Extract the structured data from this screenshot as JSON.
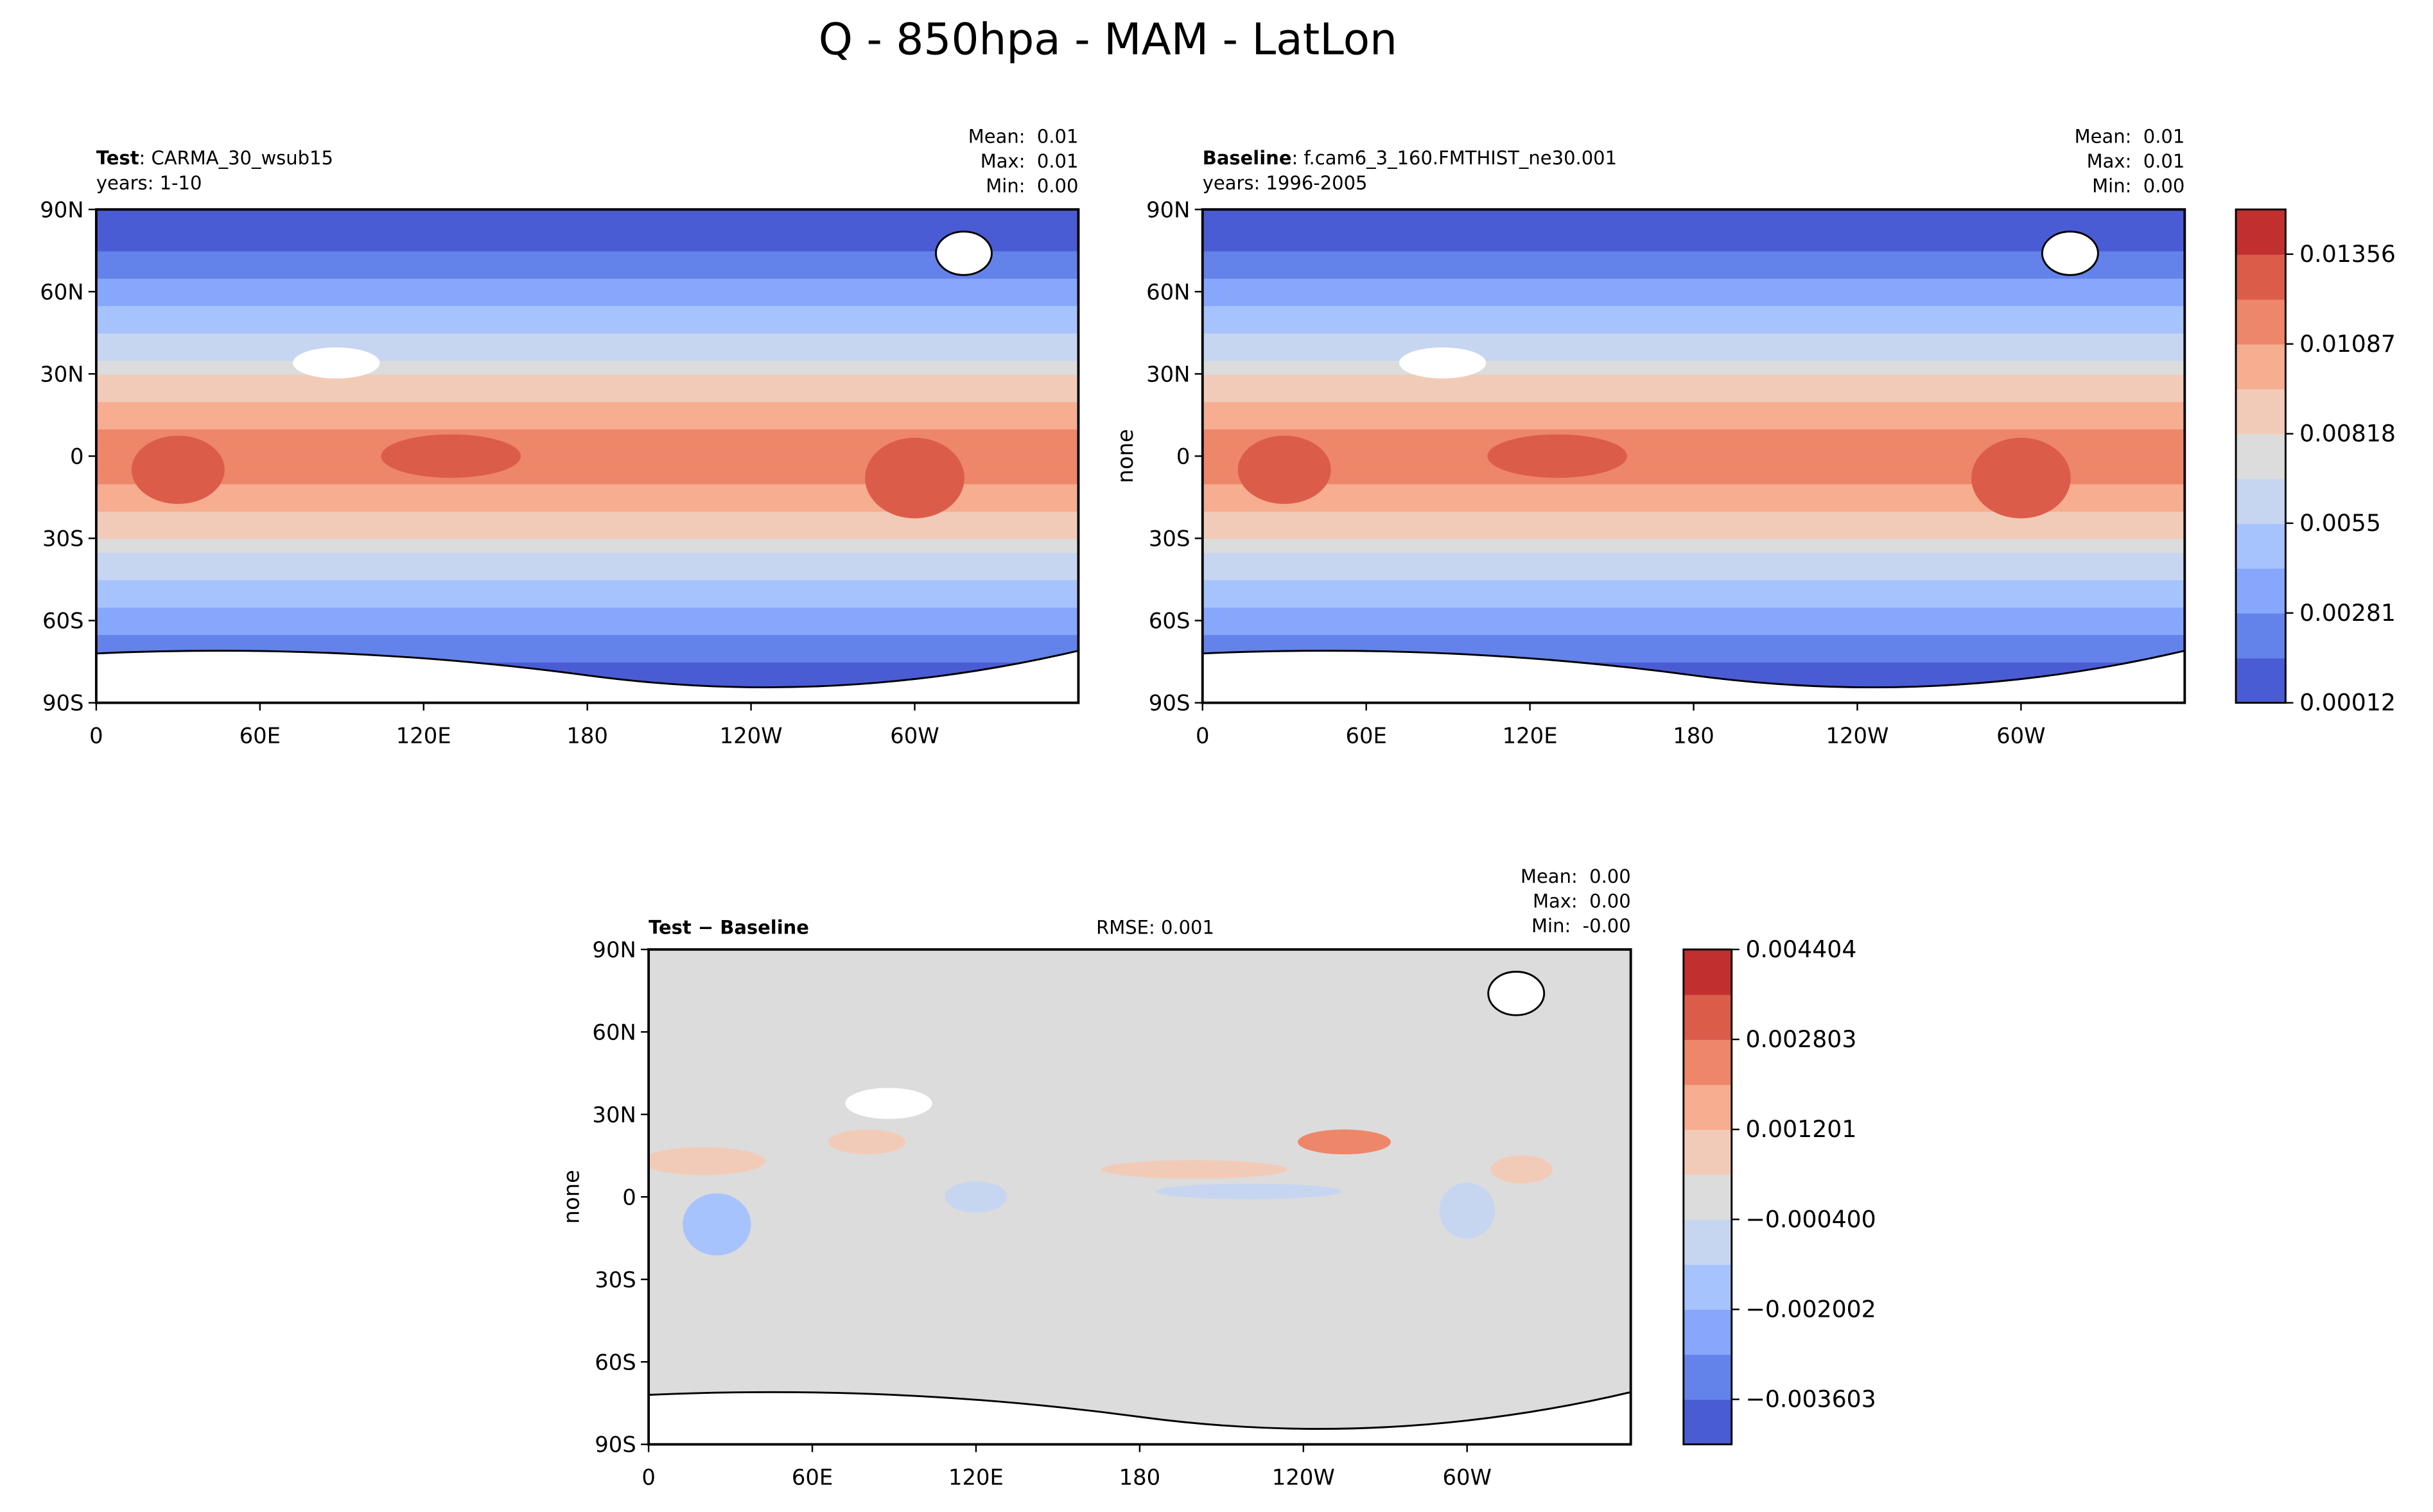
{
  "title": "Q - 850hpa - MAM - LatLon",
  "chart_data": [
    {
      "type": "map",
      "title": "Test",
      "case": ": CARMA_30_wsub15",
      "subtitle": "years: 1-10",
      "stats": [
        "Mean:  0.01",
        "Max:  0.01",
        "Min:  0.00"
      ],
      "xlim": [
        0,
        360
      ],
      "xticks": [
        0,
        {
          "value": 60,
          "label": "60E"
        },
        {
          "value": 120,
          "label": "120E"
        },
        180,
        {
          "value": 240,
          "label": "120W"
        },
        {
          "value": 300,
          "label": "60W"
        }
      ],
      "ylim": [
        -90,
        90
      ],
      "yticks": [
        {
          "value": -90,
          "label": "90S"
        },
        {
          "value": -60,
          "label": "60S"
        },
        {
          "value": -30,
          "label": "30S"
        },
        0,
        {
          "value": 30,
          "label": "30N"
        },
        {
          "value": 60,
          "label": "60N"
        },
        {
          "value": 90,
          "label": "90N"
        }
      ]
    },
    {
      "type": "map",
      "title": "Baseline",
      "case": ": f.cam6_3_160.FMTHIST_ne30.001",
      "subtitle": "years: 1996-2005",
      "stats": [
        "Mean:  0.01",
        "Max:  0.01",
        "Min:  0.00"
      ],
      "ylabel": "none",
      "xlim": [
        0,
        360
      ],
      "xticks": [
        0,
        {
          "value": 60,
          "label": "60E"
        },
        {
          "value": 120,
          "label": "120E"
        },
        180,
        {
          "value": 240,
          "label": "120W"
        },
        {
          "value": 300,
          "label": "60W"
        }
      ],
      "ylim": [
        -90,
        90
      ],
      "yticks": [
        {
          "value": -90,
          "label": "90S"
        },
        {
          "value": -60,
          "label": "60S"
        },
        {
          "value": -30,
          "label": "30S"
        },
        0,
        {
          "value": 30,
          "label": "30N"
        },
        {
          "value": 60,
          "label": "60N"
        },
        {
          "value": 90,
          "label": "90N"
        }
      ],
      "colorbar": {
        "lim": [
          0.00012,
          0.0149
        ],
        "ticks": [
          0.00012,
          0.00281,
          0.0055,
          0.00818,
          0.01087,
          0.01356
        ],
        "colors": [
          "#4a5cd3",
          "#6383ea",
          "#86a7fb",
          "#a7c3fd",
          "#c6d6f1",
          "#dcdcdc",
          "#f2cbb8",
          "#f6ad90",
          "#ee8669",
          "#dc5c4a",
          "#c1302e"
        ]
      }
    },
    {
      "type": "map",
      "title": "Test − Baseline",
      "annotation": "RMSE: 0.001",
      "stats": [
        "Mean:  0.00",
        "Max:  0.00",
        "Min:  -0.00"
      ],
      "ylabel": "none",
      "xlim": [
        0,
        360
      ],
      "xticks": [
        0,
        {
          "value": 60,
          "label": "60E"
        },
        {
          "value": 120,
          "label": "120E"
        },
        180,
        {
          "value": 240,
          "label": "120W"
        },
        {
          "value": 300,
          "label": "60W"
        }
      ],
      "ylim": [
        -90,
        90
      ],
      "yticks": [
        {
          "value": -90,
          "label": "90S"
        },
        {
          "value": -60,
          "label": "60S"
        },
        {
          "value": -30,
          "label": "30S"
        },
        0,
        {
          "value": 30,
          "label": "30N"
        },
        {
          "value": 60,
          "label": "60N"
        },
        {
          "value": 90,
          "label": "90N"
        }
      ],
      "colorbar": {
        "lim": [
          -0.004404,
          0.004404
        ],
        "ticks": [
          {
            "value": -0.003603,
            "label": "−0.003603"
          },
          {
            "value": -0.002002,
            "label": "−0.002002"
          },
          {
            "value": -0.0004,
            "label": "−0.000400"
          },
          0.001201,
          0.002803,
          0.004404
        ],
        "colors": [
          "#4a5cd3",
          "#6383ea",
          "#86a7fb",
          "#a7c3fd",
          "#c6d6f1",
          "#dcdcdc",
          "#f2cbb8",
          "#f6ad90",
          "#ee8669",
          "#dc5c4a",
          "#c1302e"
        ]
      }
    }
  ]
}
